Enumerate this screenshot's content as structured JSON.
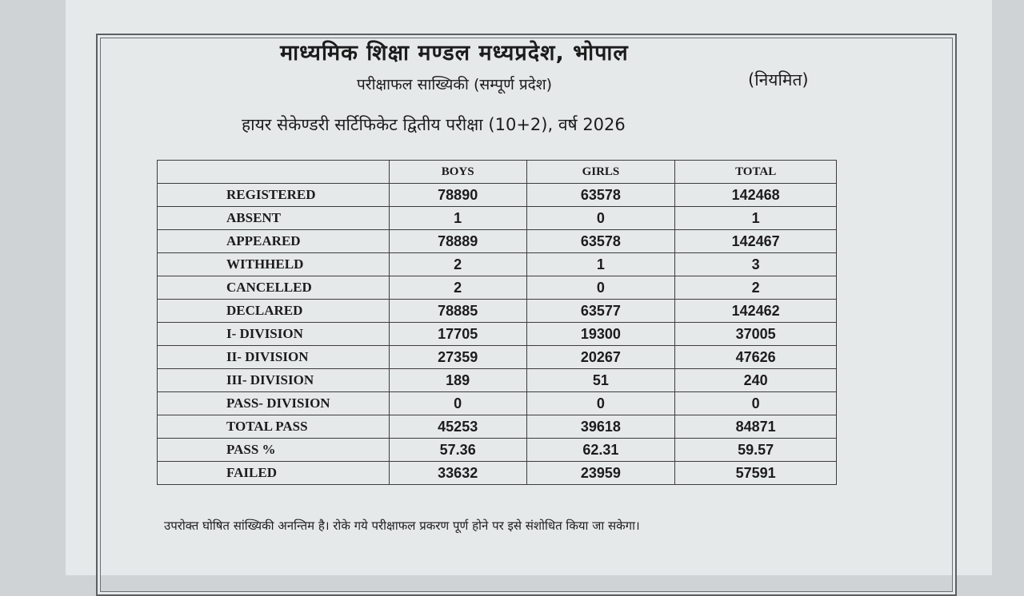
{
  "header": {
    "organization": "माध्यमिक शिक्षा मण्डल मध्यप्रदेश, भोपाल",
    "subtitle": "परीक्षाफल साख्यिकी (सम्पूर्ण प्रदेश)",
    "category": "(नियमित)",
    "exam": "हायर सेकेण्डरी सर्टिफिकेट द्वितीय परीक्षा (10+2), वर्ष 2026"
  },
  "table": {
    "columns": [
      "BOYS",
      "GIRLS",
      "TOTAL"
    ],
    "rows": [
      {
        "label": "REGISTERED",
        "boys": "78890",
        "girls": "63578",
        "total": "142468"
      },
      {
        "label": "ABSENT",
        "boys": "1",
        "girls": "0",
        "total": "1"
      },
      {
        "label": "APPEARED",
        "boys": "78889",
        "girls": "63578",
        "total": "142467"
      },
      {
        "label": "WITHHELD",
        "boys": "2",
        "girls": "1",
        "total": "3"
      },
      {
        "label": "CANCELLED",
        "boys": "2",
        "girls": "0",
        "total": "2"
      },
      {
        "label": "DECLARED",
        "boys": "78885",
        "girls": "63577",
        "total": "142462"
      },
      {
        "label": "I- DIVISION",
        "boys": "17705",
        "girls": "19300",
        "total": "37005"
      },
      {
        "label": "II- DIVISION",
        "boys": "27359",
        "girls": "20267",
        "total": "47626"
      },
      {
        "label": "III- DIVISION",
        "boys": "189",
        "girls": "51",
        "total": "240"
      },
      {
        "label": "PASS- DIVISION",
        "boys": "0",
        "girls": "0",
        "total": "0"
      },
      {
        "label": "TOTAL PASS",
        "boys": "45253",
        "girls": "39618",
        "total": "84871"
      },
      {
        "label": "PASS %",
        "boys": "57.36",
        "girls": "62.31",
        "total": "59.57"
      },
      {
        "label": "FAILED",
        "boys": "33632",
        "girls": "23959",
        "total": "57591"
      }
    ]
  },
  "footnote": "उपरोक्त घोषित सांख्यिकी अनन्तिम है। रोके गये परीक्षाफल प्रकरण पूर्ण होने पर इसे संशोधित किया जा सकेगा।"
}
